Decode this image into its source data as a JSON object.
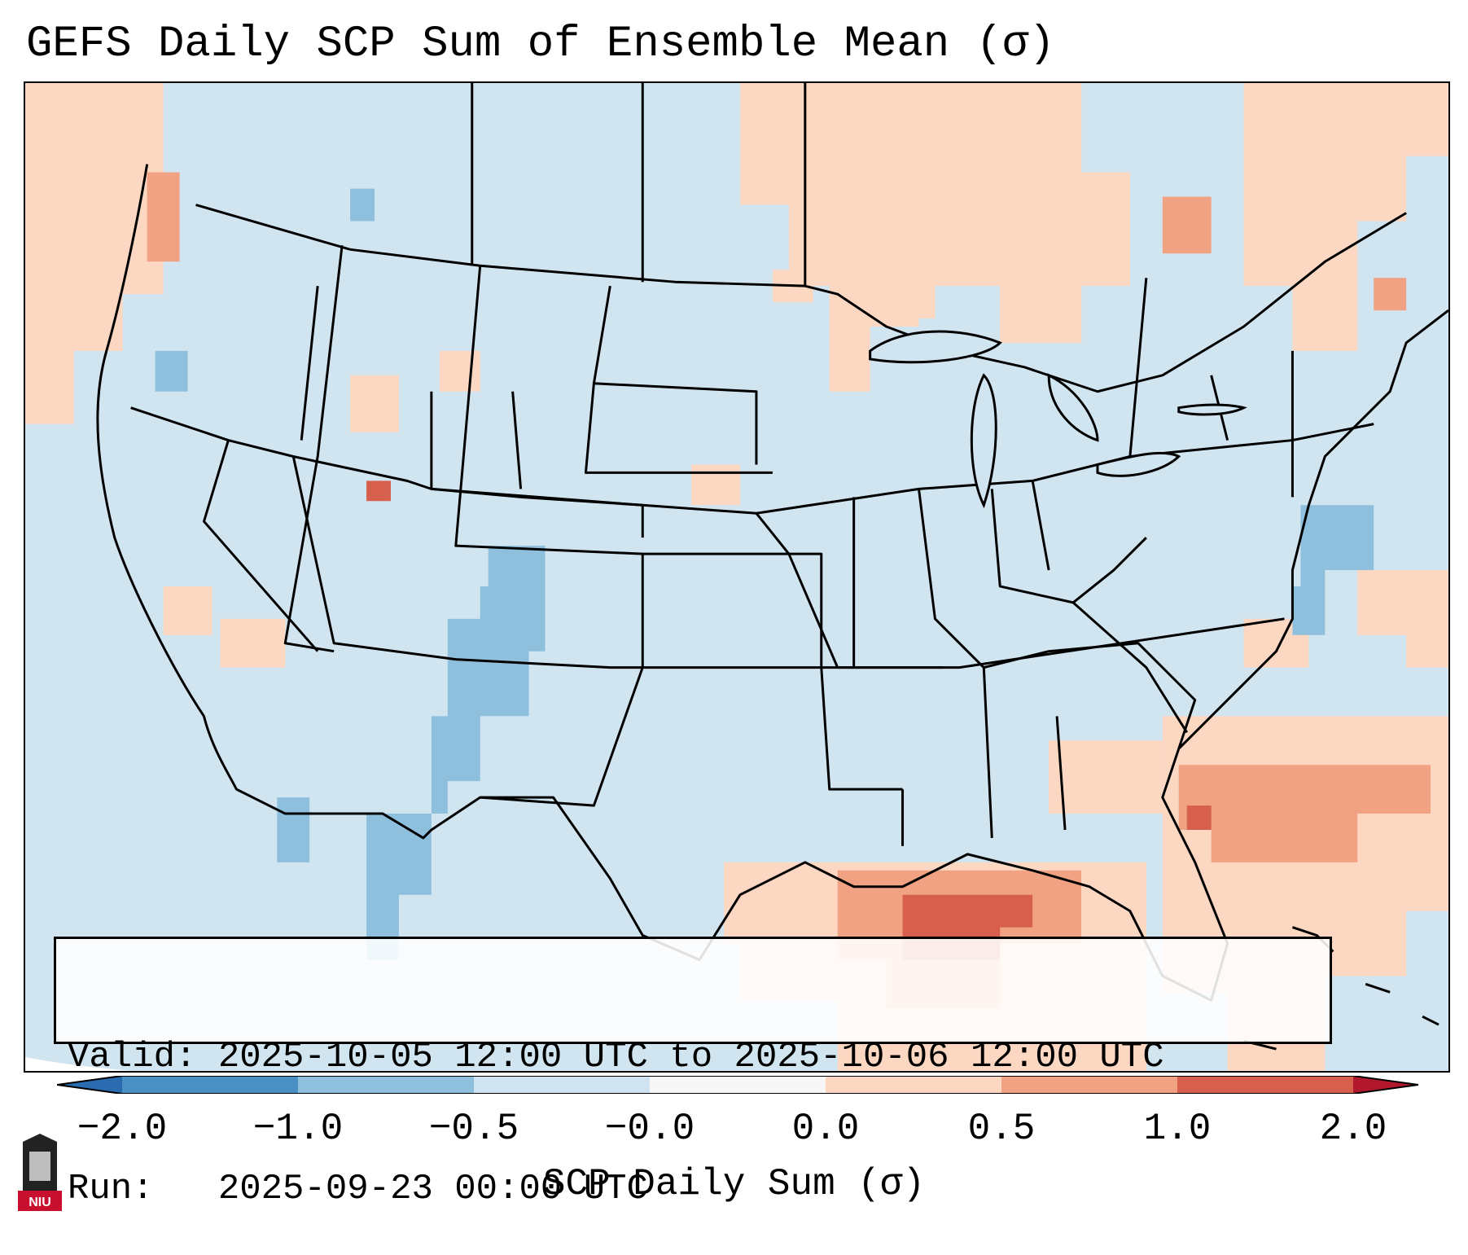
{
  "title": "GEFS Daily SCP Sum of Ensemble Mean (σ)",
  "info": {
    "valid_line": "Valid: 2025-10-05 12:00 UTC to 2025-10-06 12:00 UTC",
    "run_line": "Run:   2025-09-23 00:00 UTC"
  },
  "colorbar": {
    "label": "SCP Daily Sum (σ)",
    "ticks": [
      "−2.0",
      "−1.0",
      "−0.5",
      "−0.0",
      "0.0",
      "0.5",
      "1.0",
      "2.0"
    ],
    "colors": [
      "#4a90c4",
      "#8ec0de",
      "#cfe3f0",
      "#f7f7f7",
      "#fcd7c2",
      "#f1a283",
      "#d6604d"
    ],
    "extend_low_color": "#2b6cb0",
    "extend_high_color": "#b2182b"
  },
  "map": {
    "background_color": "#d1e5f0",
    "legend_projection_outside_color": "#ffffff"
  },
  "logo": {
    "text": "NIU",
    "color": "#c8102e"
  }
}
